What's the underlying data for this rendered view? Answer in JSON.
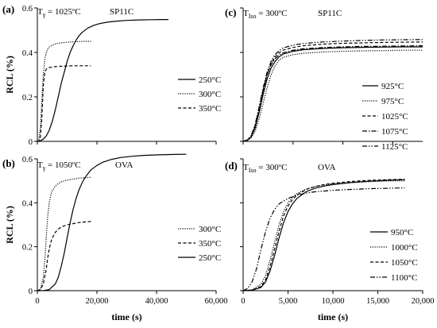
{
  "figure": {
    "x_axis_title": "time (s)",
    "y_axis_title": "RCL (%)"
  },
  "chart_data": [
    {
      "type": "line",
      "panel": "(a)",
      "condition_symbol": "T",
      "condition_subscript": "γ",
      "condition_value": " = 1025ºC",
      "condition_tag": "SP11C",
      "ylabel": "RCL (%)",
      "xlabel": "",
      "xlim": [
        0,
        60000
      ],
      "ylim": [
        0,
        0.6
      ],
      "xticks": [
        0,
        20000,
        40000,
        60000
      ],
      "xtick_labels": [],
      "yticks": [
        0,
        0.2,
        0.4,
        0.6
      ],
      "ytick_labels": [
        "0",
        "0.2",
        "0.4",
        "0.6"
      ],
      "legend_position": "right",
      "series": [
        {
          "name": "250°C",
          "dash": "solid",
          "x": [
            0,
            1000,
            2000,
            3000,
            4000,
            5000,
            6000,
            7000,
            8000,
            9000,
            10000,
            11000,
            12000,
            13000,
            14000,
            15000,
            17000,
            19000,
            21000,
            24000,
            27000,
            30000,
            34000,
            38000,
            42000,
            44000
          ],
          "y": [
            0,
            0.003,
            0.01,
            0.025,
            0.05,
            0.09,
            0.14,
            0.2,
            0.26,
            0.31,
            0.36,
            0.4,
            0.43,
            0.455,
            0.475,
            0.49,
            0.51,
            0.522,
            0.53,
            0.537,
            0.541,
            0.544,
            0.546,
            0.547,
            0.548,
            0.548
          ]
        },
        {
          "name": "300°C",
          "dash": "dot",
          "x": [
            0,
            500,
            1000,
            1500,
            2000,
            2500,
            3000,
            3500,
            4000,
            5000,
            6000,
            7000,
            8000,
            10000,
            12000,
            14000,
            16000,
            18000
          ],
          "y": [
            0,
            0.01,
            0.06,
            0.18,
            0.3,
            0.37,
            0.4,
            0.415,
            0.425,
            0.433,
            0.438,
            0.441,
            0.443,
            0.446,
            0.448,
            0.449,
            0.45,
            0.45
          ]
        },
        {
          "name": "350°C",
          "dash": "dash",
          "x": [
            0,
            500,
            1000,
            1500,
            2000,
            2500,
            3000,
            3500,
            4000,
            5000,
            6000,
            8000,
            10000,
            12000,
            14000,
            16000,
            18000
          ],
          "y": [
            0,
            0.0,
            0.02,
            0.1,
            0.25,
            0.31,
            0.325,
            0.33,
            0.332,
            0.334,
            0.336,
            0.338,
            0.339,
            0.34,
            0.34,
            0.34,
            0.34
          ]
        }
      ]
    },
    {
      "type": "line",
      "panel": "(b)",
      "condition_symbol": "T",
      "condition_subscript": "γ",
      "condition_value": " = 1050ºC",
      "condition_tag": "OVA",
      "ylabel": "RCL (%)",
      "xlabel": "time (s)",
      "xlim": [
        0,
        60000
      ],
      "ylim": [
        0,
        0.6
      ],
      "xticks": [
        0,
        20000,
        40000,
        60000
      ],
      "xtick_labels": [
        "0",
        "20,000",
        "40,000",
        "60,000"
      ],
      "yticks": [
        0,
        0.2,
        0.4,
        0.6
      ],
      "ytick_labels": [
        "0",
        "0.2",
        "0.4",
        "0.6"
      ],
      "legend_position": "right",
      "series": [
        {
          "name": "300°C",
          "dash": "dot",
          "x": [
            0,
            1000,
            2000,
            2500,
            3000,
            3500,
            4000,
            4500,
            5000,
            6000,
            7000,
            8000,
            10000,
            12000,
            14000,
            16000,
            18000
          ],
          "y": [
            0,
            0.005,
            0.06,
            0.14,
            0.25,
            0.34,
            0.4,
            0.435,
            0.455,
            0.475,
            0.487,
            0.495,
            0.503,
            0.508,
            0.512,
            0.514,
            0.516
          ]
        },
        {
          "name": "350°C",
          "dash": "dash",
          "x": [
            0,
            1000,
            2000,
            3000,
            3500,
            4000,
            4500,
            5000,
            6000,
            7000,
            8000,
            10000,
            12000,
            14000,
            16000,
            18000
          ],
          "y": [
            0,
            0.005,
            0.03,
            0.1,
            0.15,
            0.19,
            0.22,
            0.24,
            0.265,
            0.28,
            0.29,
            0.3,
            0.305,
            0.31,
            0.313,
            0.315
          ]
        },
        {
          "name": "250°C",
          "dash": "solid",
          "x": [
            0,
            2000,
            4000,
            6000,
            7000,
            8000,
            9000,
            10000,
            11000,
            12000,
            13000,
            14000,
            15000,
            16000,
            18000,
            20000,
            22000,
            25000,
            28000,
            32000,
            36000,
            40000,
            45000,
            50000
          ],
          "y": [
            0,
            0.0,
            0.005,
            0.03,
            0.06,
            0.11,
            0.17,
            0.24,
            0.31,
            0.37,
            0.42,
            0.46,
            0.49,
            0.515,
            0.55,
            0.57,
            0.585,
            0.598,
            0.606,
            0.612,
            0.616,
            0.618,
            0.62,
            0.621
          ]
        }
      ]
    },
    {
      "type": "line",
      "panel": "(c)",
      "condition_symbol": "T",
      "condition_subscript": "Iso",
      "condition_value": " = 300ºC",
      "condition_tag": "SP11C",
      "ylabel": "",
      "xlabel": "",
      "xlim": [
        0,
        18000
      ],
      "ylim": [
        0,
        0.6
      ],
      "xticks": [
        0,
        5000,
        10000,
        15000
      ],
      "xtick_labels": [],
      "yticks": [
        0,
        0.2,
        0.4,
        0.6
      ],
      "ytick_labels": [],
      "legend_position": "right",
      "series": [
        {
          "name": "925°C",
          "dash": "solid",
          "x": [
            0,
            400,
            800,
            1200,
            1600,
            2000,
            2400,
            2800,
            3200,
            3600,
            4000,
            5000,
            6000,
            8000,
            10000,
            12000,
            14000,
            16000,
            18000
          ],
          "y": [
            0,
            0.005,
            0.02,
            0.06,
            0.13,
            0.21,
            0.28,
            0.33,
            0.36,
            0.38,
            0.392,
            0.405,
            0.412,
            0.418,
            0.421,
            0.423,
            0.424,
            0.425,
            0.425
          ]
        },
        {
          "name": "975°C",
          "dash": "dot",
          "x": [
            0,
            400,
            800,
            1200,
            1600,
            2000,
            2400,
            2800,
            3200,
            3600,
            4000,
            5000,
            6000,
            8000,
            10000,
            12000,
            14000,
            16000,
            18000
          ],
          "y": [
            0,
            0.003,
            0.015,
            0.045,
            0.1,
            0.17,
            0.24,
            0.3,
            0.34,
            0.365,
            0.378,
            0.39,
            0.396,
            0.402,
            0.405,
            0.407,
            0.408,
            0.41,
            0.41
          ]
        },
        {
          "name": "1025°C",
          "dash": "dash",
          "x": [
            0,
            400,
            800,
            1200,
            1600,
            2000,
            2400,
            2800,
            3200,
            3600,
            4000,
            5000,
            6000,
            8000,
            10000,
            12000,
            14000,
            16000,
            18000
          ],
          "y": [
            0,
            0.005,
            0.02,
            0.065,
            0.14,
            0.225,
            0.3,
            0.35,
            0.38,
            0.398,
            0.41,
            0.422,
            0.43,
            0.437,
            0.441,
            0.443,
            0.445,
            0.446,
            0.447
          ]
        },
        {
          "name": "1075°C",
          "dash": "dashdot",
          "x": [
            0,
            400,
            800,
            1200,
            1600,
            2000,
            2400,
            2800,
            3200,
            3600,
            4000,
            5000,
            6000,
            8000,
            10000,
            12000,
            14000,
            16000,
            18000
          ],
          "y": [
            0,
            0.005,
            0.022,
            0.07,
            0.15,
            0.23,
            0.3,
            0.345,
            0.372,
            0.388,
            0.398,
            0.41,
            0.416,
            0.422,
            0.425,
            0.427,
            0.428,
            0.429,
            0.43
          ]
        },
        {
          "name": "1125°C",
          "dash": "dashdotdot",
          "x": [
            0,
            400,
            800,
            1200,
            1600,
            2000,
            2400,
            2800,
            3200,
            3600,
            4000,
            5000,
            6000,
            8000,
            10000,
            12000,
            14000,
            16000,
            18000
          ],
          "y": [
            0,
            0.006,
            0.025,
            0.075,
            0.155,
            0.24,
            0.31,
            0.36,
            0.39,
            0.408,
            0.42,
            0.433,
            0.44,
            0.447,
            0.451,
            0.454,
            0.456,
            0.457,
            0.458
          ]
        }
      ]
    },
    {
      "type": "line",
      "panel": "(d)",
      "condition_symbol": "T",
      "condition_subscript": "Iso",
      "condition_value": " = 300ºC",
      "condition_tag": "OVA",
      "ylabel": "",
      "xlabel": "time (s)",
      "xlim": [
        0,
        20000
      ],
      "ylim": [
        0,
        0.6
      ],
      "xticks": [
        0,
        5000,
        10000,
        15000,
        20000
      ],
      "xtick_labels": [
        "0",
        "5,000",
        "10,000",
        "15,000",
        "20,000"
      ],
      "yticks": [
        0,
        0.2,
        0.4,
        0.6
      ],
      "ytick_labels": [],
      "legend_position": "right",
      "series": [
        {
          "name": "950°C",
          "dash": "solid",
          "x": [
            0,
            1000,
            2000,
            2500,
            3000,
            3500,
            4000,
            4500,
            5000,
            5500,
            6000,
            7000,
            8000,
            9000,
            10000,
            12000,
            14000,
            16000,
            18000
          ],
          "y": [
            0,
            0.002,
            0.015,
            0.04,
            0.09,
            0.16,
            0.24,
            0.31,
            0.36,
            0.395,
            0.42,
            0.45,
            0.466,
            0.476,
            0.483,
            0.492,
            0.498,
            0.502,
            0.505
          ]
        },
        {
          "name": "1000°C",
          "dash": "dot",
          "x": [
            0,
            1000,
            2000,
            2500,
            3000,
            3500,
            4000,
            4500,
            5000,
            5500,
            6000,
            7000,
            8000,
            9000,
            10000,
            12000,
            14000,
            16000,
            18000
          ],
          "y": [
            0,
            0.004,
            0.03,
            0.07,
            0.14,
            0.22,
            0.3,
            0.36,
            0.4,
            0.425,
            0.442,
            0.462,
            0.474,
            0.481,
            0.486,
            0.492,
            0.496,
            0.499,
            0.5
          ]
        },
        {
          "name": "1050°C",
          "dash": "dash",
          "x": [
            0,
            1000,
            2000,
            2500,
            3000,
            3500,
            4000,
            4500,
            5000,
            5500,
            6000,
            7000,
            8000,
            9000,
            10000,
            12000,
            14000,
            16000,
            18000
          ],
          "y": [
            0,
            0.003,
            0.02,
            0.05,
            0.11,
            0.19,
            0.27,
            0.34,
            0.385,
            0.415,
            0.435,
            0.46,
            0.474,
            0.483,
            0.489,
            0.497,
            0.502,
            0.505,
            0.507
          ]
        },
        {
          "name": "1100°C",
          "dash": "dashdotdot",
          "x": [
            0,
            500,
            1000,
            1500,
            2000,
            2500,
            3000,
            3500,
            4000,
            5000,
            6000,
            7000,
            8000,
            10000,
            12000,
            14000,
            16000,
            18000
          ],
          "y": [
            0,
            0.01,
            0.04,
            0.1,
            0.19,
            0.27,
            0.33,
            0.37,
            0.395,
            0.42,
            0.435,
            0.444,
            0.45,
            0.457,
            0.461,
            0.464,
            0.466,
            0.468
          ]
        }
      ]
    }
  ]
}
